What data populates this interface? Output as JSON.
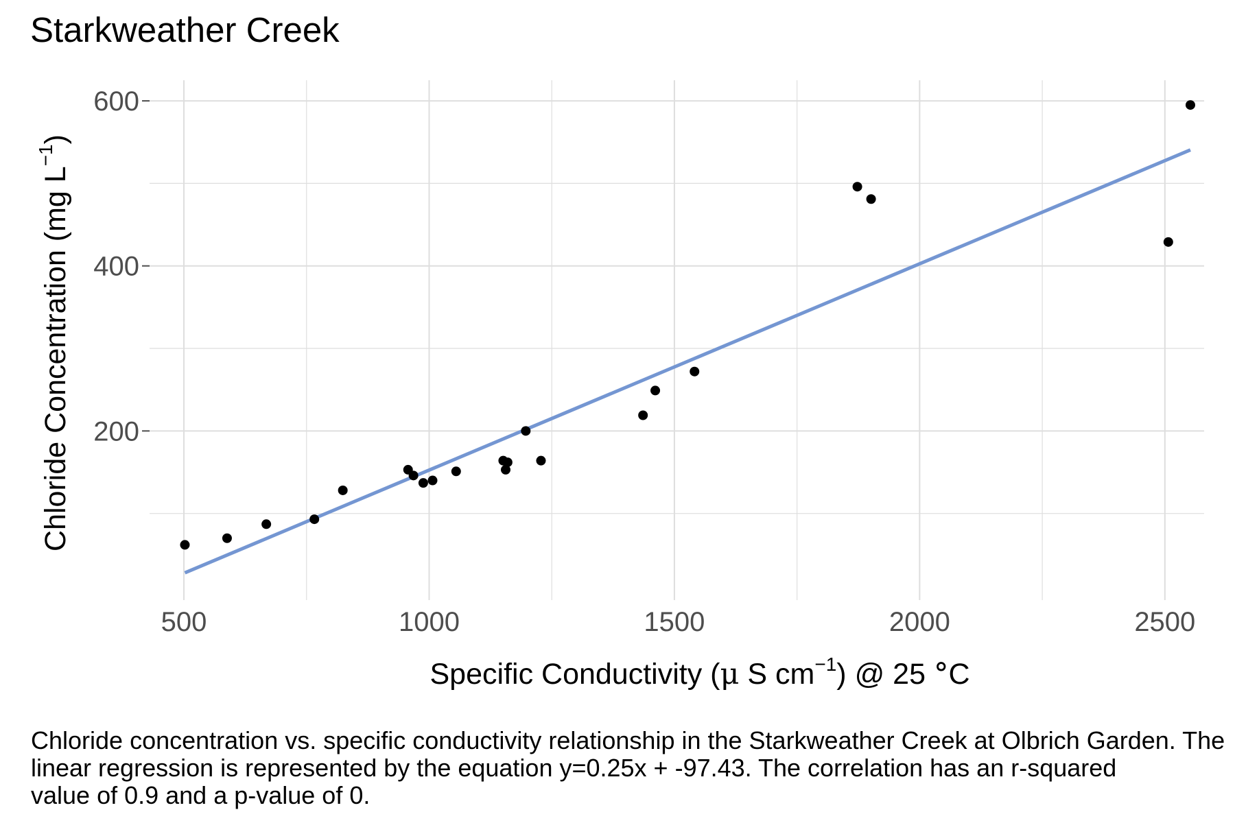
{
  "chart_data": {
    "type": "scatter",
    "title": "Starkweather Creek",
    "xlabel": {
      "prefix": "Specific Conductivity (",
      "mu": "μ",
      "unit": " S cm",
      "sup": "−1",
      "suffix": ") @ 25 ",
      "degree": "°",
      "tail": "C"
    },
    "ylabel": {
      "prefix": "Chloride Concentration (mg L",
      "sup": "−1",
      "suffix": ")"
    },
    "xlim": [
      430,
      2580
    ],
    "ylim": [
      -5,
      625
    ],
    "x_ticks": [
      500,
      1000,
      1500,
      2000,
      2500
    ],
    "x_tick_labels": [
      "500",
      "1000",
      "1500",
      "2000",
      "2500"
    ],
    "y_ticks": [
      200,
      400,
      600
    ],
    "y_tick_labels": [
      "200",
      "400",
      "600"
    ],
    "x_minor_grid": [
      750,
      1250,
      1750,
      2250
    ],
    "y_minor_grid": [
      100,
      300,
      500
    ],
    "grid": true,
    "series": [
      {
        "points": [
          [
            502,
            62
          ],
          [
            588,
            70
          ],
          [
            668,
            87
          ],
          [
            766,
            93
          ],
          [
            824,
            128
          ],
          [
            957,
            153
          ],
          [
            968,
            146
          ],
          [
            988,
            137
          ],
          [
            1007,
            140
          ],
          [
            1055,
            151
          ],
          [
            1151,
            164
          ],
          [
            1156,
            153
          ],
          [
            1160,
            162
          ],
          [
            1197,
            200
          ],
          [
            1228,
            164
          ],
          [
            1436,
            219
          ],
          [
            1461,
            249
          ],
          [
            1541,
            272
          ],
          [
            1873,
            496
          ],
          [
            1901,
            481
          ],
          [
            2507,
            429
          ],
          [
            2552,
            595
          ]
        ]
      }
    ],
    "regression": {
      "slope": 0.25,
      "intercept": -97.43,
      "x_range": [
        502,
        2552
      ]
    },
    "colors": {
      "points": "#000000",
      "fit_line": "#7496d2",
      "grid": "#dedede",
      "ticks": "#4d4d4d"
    }
  },
  "caption": {
    "line1": "Chloride concentration vs. specific conductivity relationship in the Starkweather Creek at Olbrich Garden. The",
    "line2": "linear regression is represented by the equation y=0.25x + -97.43. The correlation has an r-squared",
    "line3": "value of 0.9 and a p-value of 0."
  }
}
